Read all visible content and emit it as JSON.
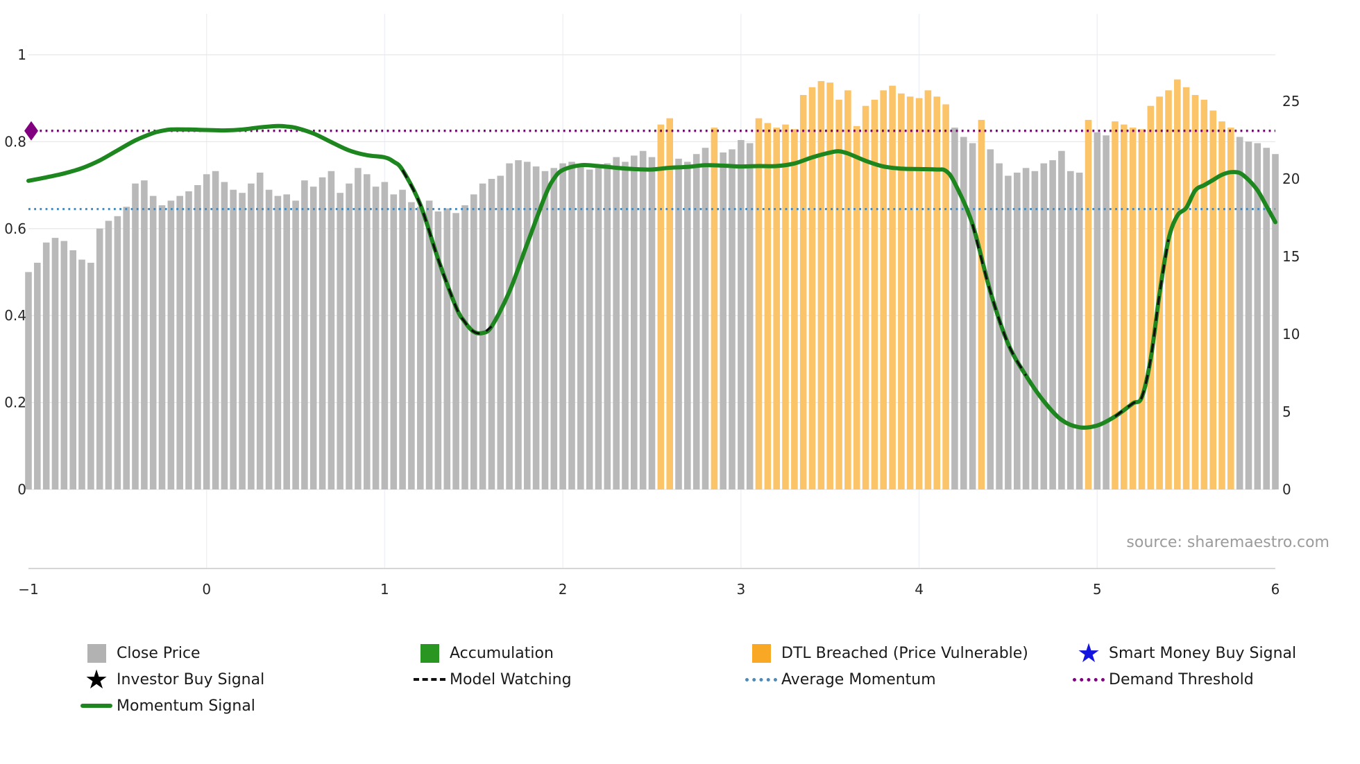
{
  "source_text": "source: sharemaestro.com",
  "icons": {
    "star": "★",
    "diamond": "◆"
  },
  "colors": {
    "close_price": "#b9b9b9",
    "close_price_legend": "#b2b2b2",
    "dtl_breached": "#fcc468",
    "dtl_breached_legend": "#f9a825",
    "momentum": "#1e861e",
    "accumulation_legend": "#2a9622",
    "average_momentum": "#4d8ab8",
    "demand_threshold": "#800080",
    "model_watching": "#111111",
    "smart_money_star": "#1414e0",
    "investor_star": "#000000"
  },
  "legend": {
    "items": [
      {
        "label": "Close Price",
        "marker": "square-gray"
      },
      {
        "label": "Accumulation",
        "marker": "square-green"
      },
      {
        "label": "DTL Breached (Price Vulnerable)",
        "marker": "square-orange"
      },
      {
        "label": "Smart Money Buy Signal",
        "marker": "blue-star"
      },
      {
        "label": "Investor Buy Signal",
        "marker": "black-star"
      },
      {
        "label": "Model Watching",
        "marker": "black-dashed-line"
      },
      {
        "label": "Average Momentum",
        "marker": "blue-dotted-line"
      },
      {
        "label": "Demand Threshold",
        "marker": "purple-dotted-line"
      },
      {
        "label": "Momentum Signal",
        "marker": "green-solid-line"
      }
    ]
  },
  "chart_data": {
    "type": "bar",
    "title": "",
    "xlabel": "",
    "ylabel": "",
    "bar_axis": "right",
    "line_axis": "left",
    "xlim": [
      -1,
      6
    ],
    "ylim_left": [
      0,
      1
    ],
    "ylim_right": [
      0,
      25
    ],
    "grid": true,
    "legend_position": "bottom",
    "x_ticks": [
      -1,
      0,
      1,
      2,
      3,
      4,
      5,
      6
    ],
    "x_tick_labels": [
      "−1",
      "0",
      "1",
      "2",
      "3",
      "4",
      "5",
      "6"
    ],
    "left_ticks": [
      0,
      0.2,
      0.4,
      0.6,
      0.8,
      1
    ],
    "left_tick_labels": [
      "0",
      "0.2",
      "0.4",
      "0.6",
      "0.8",
      "1"
    ],
    "right_ticks": [
      0,
      5,
      10,
      15,
      20,
      25
    ],
    "right_tick_labels": [
      "0",
      "5",
      "10",
      "15",
      "20",
      "25"
    ],
    "x_start": -1,
    "x_step": 0.05,
    "bar_series_name": "Close Price",
    "bar_values": [
      14.0,
      14.6,
      15.9,
      16.2,
      16.0,
      15.4,
      14.8,
      14.6,
      16.8,
      17.3,
      17.6,
      18.2,
      19.7,
      19.9,
      18.9,
      18.3,
      18.6,
      18.9,
      19.2,
      19.6,
      20.3,
      20.5,
      19.8,
      19.3,
      19.1,
      19.7,
      20.4,
      19.3,
      18.9,
      19.0,
      18.6,
      19.9,
      19.5,
      20.1,
      20.5,
      19.1,
      19.7,
      20.7,
      20.3,
      19.5,
      19.8,
      19.0,
      19.3,
      18.5,
      18.2,
      18.6,
      17.9,
      18.1,
      17.8,
      18.3,
      19.0,
      19.7,
      20.0,
      20.2,
      21.0,
      21.2,
      21.1,
      20.8,
      20.5,
      20.7,
      21.0,
      21.1,
      20.8,
      20.6,
      20.7,
      21.0,
      21.4,
      21.1,
      21.5,
      21.8,
      21.4,
      23.5,
      23.9,
      21.3,
      21.1,
      21.6,
      22.0,
      23.3,
      21.7,
      21.9,
      22.5,
      22.3,
      23.9,
      23.6,
      23.3,
      23.5,
      23.2,
      25.4,
      25.9,
      26.3,
      26.2,
      25.1,
      25.7,
      23.4,
      24.7,
      25.1,
      25.7,
      26.0,
      25.5,
      25.3,
      25.2,
      25.7,
      25.3,
      24.8,
      23.3,
      22.7,
      22.3,
      23.8,
      21.9,
      21.0,
      20.2,
      20.4,
      20.7,
      20.5,
      21.0,
      21.2,
      21.8,
      20.5,
      20.4,
      23.8,
      23.0,
      22.8,
      23.7,
      23.5,
      23.3,
      23.2,
      24.7,
      25.3,
      25.7,
      26.4,
      25.9,
      25.4,
      25.1,
      24.4,
      23.7,
      23.3,
      22.7,
      22.4,
      22.3,
      22.0,
      21.6
    ],
    "dtl_breached_ranges": [
      [
        2.55,
        2.6
      ],
      [
        2.85,
        2.85
      ],
      [
        3.1,
        4.15
      ],
      [
        4.35,
        4.35
      ],
      [
        4.95,
        4.95
      ],
      [
        5.1,
        5.75
      ]
    ],
    "momentum_series_name": "Momentum Signal",
    "momentum_points": [
      [
        -1.0,
        0.71
      ],
      [
        -0.9,
        0.718
      ],
      [
        -0.8,
        0.727
      ],
      [
        -0.7,
        0.739
      ],
      [
        -0.6,
        0.757
      ],
      [
        -0.5,
        0.78
      ],
      [
        -0.4,
        0.803
      ],
      [
        -0.3,
        0.82
      ],
      [
        -0.25,
        0.825
      ],
      [
        -0.2,
        0.828
      ],
      [
        -0.1,
        0.828
      ],
      [
        0.0,
        0.827
      ],
      [
        0.1,
        0.826
      ],
      [
        0.2,
        0.828
      ],
      [
        0.3,
        0.833
      ],
      [
        0.4,
        0.836
      ],
      [
        0.45,
        0.835
      ],
      [
        0.5,
        0.832
      ],
      [
        0.6,
        0.819
      ],
      [
        0.7,
        0.799
      ],
      [
        0.8,
        0.78
      ],
      [
        0.9,
        0.769
      ],
      [
        1.0,
        0.764
      ],
      [
        1.05,
        0.754
      ],
      [
        1.1,
        0.735
      ],
      [
        1.2,
        0.655
      ],
      [
        1.3,
        0.53
      ],
      [
        1.4,
        0.42
      ],
      [
        1.45,
        0.385
      ],
      [
        1.5,
        0.363
      ],
      [
        1.55,
        0.36
      ],
      [
        1.6,
        0.375
      ],
      [
        1.7,
        0.455
      ],
      [
        1.8,
        0.565
      ],
      [
        1.9,
        0.675
      ],
      [
        1.95,
        0.715
      ],
      [
        2.0,
        0.735
      ],
      [
        2.1,
        0.746
      ],
      [
        2.2,
        0.744
      ],
      [
        2.3,
        0.74
      ],
      [
        2.4,
        0.737
      ],
      [
        2.5,
        0.736
      ],
      [
        2.6,
        0.74
      ],
      [
        2.7,
        0.742
      ],
      [
        2.8,
        0.746
      ],
      [
        2.9,
        0.745
      ],
      [
        3.0,
        0.743
      ],
      [
        3.1,
        0.744
      ],
      [
        3.2,
        0.744
      ],
      [
        3.3,
        0.75
      ],
      [
        3.4,
        0.764
      ],
      [
        3.5,
        0.775
      ],
      [
        3.55,
        0.778
      ],
      [
        3.6,
        0.773
      ],
      [
        3.7,
        0.756
      ],
      [
        3.8,
        0.743
      ],
      [
        3.9,
        0.738
      ],
      [
        4.0,
        0.737
      ],
      [
        4.1,
        0.736
      ],
      [
        4.15,
        0.733
      ],
      [
        4.2,
        0.705
      ],
      [
        4.3,
        0.61
      ],
      [
        4.4,
        0.455
      ],
      [
        4.5,
        0.335
      ],
      [
        4.6,
        0.262
      ],
      [
        4.7,
        0.203
      ],
      [
        4.8,
        0.16
      ],
      [
        4.9,
        0.143
      ],
      [
        5.0,
        0.147
      ],
      [
        5.1,
        0.168
      ],
      [
        5.2,
        0.198
      ],
      [
        5.25,
        0.212
      ],
      [
        5.3,
        0.3
      ],
      [
        5.35,
        0.45
      ],
      [
        5.4,
        0.575
      ],
      [
        5.45,
        0.63
      ],
      [
        5.5,
        0.648
      ],
      [
        5.55,
        0.688
      ],
      [
        5.6,
        0.7
      ],
      [
        5.65,
        0.712
      ],
      [
        5.7,
        0.724
      ],
      [
        5.75,
        0.73
      ],
      [
        5.8,
        0.728
      ],
      [
        5.85,
        0.712
      ],
      [
        5.9,
        0.688
      ],
      [
        5.95,
        0.652
      ],
      [
        6.0,
        0.615
      ]
    ],
    "model_watching_segments": [
      [
        1.08,
        1.62
      ],
      [
        4.28,
        4.62
      ],
      [
        5.02,
        5.42
      ]
    ],
    "average_momentum": 0.645,
    "demand_threshold": 0.825,
    "demand_marker": {
      "x": -1,
      "y": 0.825
    }
  }
}
